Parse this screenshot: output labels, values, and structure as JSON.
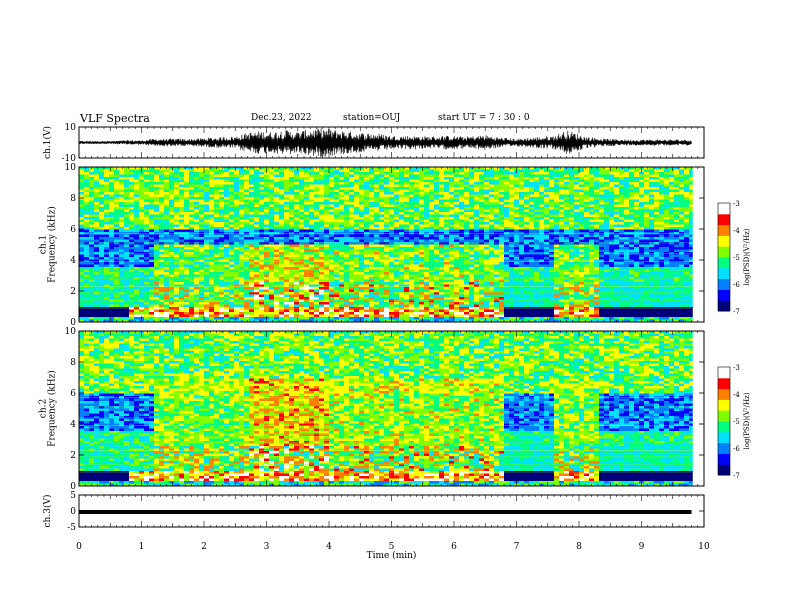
{
  "header": {
    "title": "VLF Spectra",
    "date": "Dec.23, 2022",
    "station": "station=OUJ",
    "start": "start UT =  7 : 30 : 0"
  },
  "chart_data": [
    {
      "type": "line",
      "name": "ch1-waveform",
      "ylabel": "ch.1(V)",
      "ylim": [
        -10,
        10
      ],
      "yticks": [
        "10",
        "-10"
      ],
      "xlim": [
        0,
        10
      ],
      "envelope": {
        "x": [
          0,
          0.5,
          0.8,
          1.0,
          1.2,
          1.5,
          1.8,
          2.0,
          2.2,
          2.5,
          2.7,
          2.9,
          3.1,
          3.3,
          3.5,
          3.7,
          3.9,
          4.1,
          4.3,
          4.5,
          4.8,
          5.0,
          5.3,
          5.6,
          5.9,
          6.2,
          6.5,
          6.7,
          7.0,
          7.3,
          7.6,
          7.8,
          7.9,
          8.1,
          8.4,
          8.8,
          9.2,
          9.5,
          9.8
        ],
        "y": [
          1.0,
          1.0,
          1.5,
          1.5,
          2.5,
          2.5,
          2.5,
          3.0,
          3.5,
          4.0,
          6.5,
          7.5,
          7.0,
          8.5,
          7.0,
          9.0,
          9.5,
          8.5,
          7.5,
          6.5,
          6.0,
          4.5,
          4.5,
          4.0,
          4.5,
          4.0,
          5.0,
          3.5,
          2.5,
          3.5,
          4.5,
          8.0,
          7.0,
          4.0,
          2.5,
          2.0,
          2.0,
          2.0,
          2.0
        ]
      }
    },
    {
      "type": "heatmap",
      "name": "ch1-spectrogram",
      "ylabel": "ch.1\nFrequency (kHz)",
      "ylim": [
        0,
        10
      ],
      "yticks": [
        "0",
        "2",
        "4",
        "6",
        "8",
        "10"
      ],
      "xlim": [
        0,
        10
      ],
      "colorbar": {
        "label": "log(PSD)(V²/Hz)",
        "range": [
          -7,
          -3
        ],
        "ticks": [
          "-3",
          "-4",
          "-5",
          "-6",
          "-7"
        ]
      }
    },
    {
      "type": "heatmap",
      "name": "ch2-spectrogram",
      "ylabel": "ch.2\nFrequency (kHz)",
      "ylim": [
        0,
        10
      ],
      "yticks": [
        "0",
        "2",
        "4",
        "6",
        "8",
        "10"
      ],
      "xlim": [
        0,
        10
      ],
      "colorbar": {
        "label": "log(PSD)(V²/Hz)",
        "range": [
          -7,
          -3
        ],
        "ticks": [
          "-3",
          "-4",
          "-5",
          "-6",
          "-7"
        ]
      }
    },
    {
      "type": "line",
      "name": "ch3-waveform",
      "ylabel": "ch.3(V)",
      "ylim": [
        -5,
        5
      ],
      "yticks": [
        "5",
        "0",
        "-5"
      ],
      "xlim": [
        0,
        10
      ],
      "x": [
        0,
        9.8
      ],
      "y": [
        0,
        0
      ]
    }
  ],
  "xaxis": {
    "label": "Time (min)",
    "ticks": [
      "0",
      "1",
      "2",
      "3",
      "4",
      "5",
      "6",
      "7",
      "8",
      "9",
      "10"
    ]
  },
  "colors": {
    "colormap": [
      "#00007a",
      "#0000ff",
      "#0080ff",
      "#00e0ff",
      "#00ff80",
      "#80ff00",
      "#ffff00",
      "#ff8000",
      "#ff0000",
      "#ffffff"
    ]
  }
}
